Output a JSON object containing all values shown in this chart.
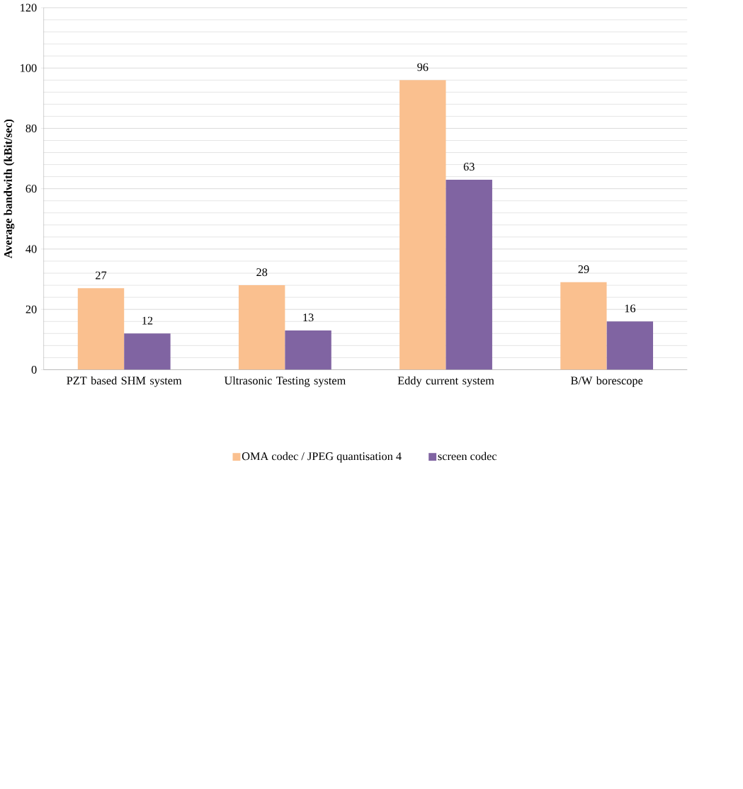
{
  "chart_data": {
    "type": "bar",
    "ylabel": "Average bandwith (kBit/sec)",
    "categories": [
      "PZT based SHM system",
      "Ultrasonic Testing system",
      "Eddy current system",
      "B/W borescope"
    ],
    "series": [
      {
        "name": "OMA codec / JPEG quantisation 4",
        "color": "#fac08f",
        "values": [
          27,
          28,
          96,
          29
        ]
      },
      {
        "name": "screen codec",
        "color": "#8064a2",
        "values": [
          12,
          13,
          63,
          16
        ]
      }
    ],
    "ylim": [
      0,
      120
    ],
    "yticks": [
      0,
      20,
      40,
      60,
      80,
      100,
      120
    ],
    "grid": "y",
    "legend": "bottom",
    "data_labels": true
  }
}
